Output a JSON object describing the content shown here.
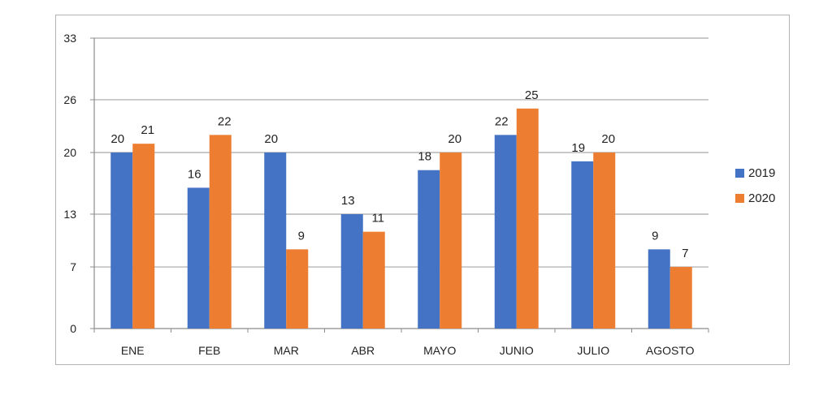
{
  "chart_data": {
    "type": "bar",
    "title": "",
    "xlabel": "",
    "ylabel": "",
    "categories": [
      "ENE",
      "FEB",
      "MAR",
      "ABR",
      "MAYO",
      "JUNIO",
      "JULIO",
      "AGOSTO"
    ],
    "series": [
      {
        "name": "2019",
        "color": "#4472c4",
        "values": [
          20,
          16,
          20,
          13,
          18,
          22,
          19,
          9
        ]
      },
      {
        "name": "2020",
        "color": "#ed7d31",
        "values": [
          21,
          22,
          9,
          11,
          20,
          25,
          20,
          7
        ]
      }
    ],
    "y_ticks": [
      0,
      7,
      13,
      20,
      26,
      33
    ],
    "ylim": [
      0,
      33
    ],
    "grid": true,
    "legend": "right"
  }
}
